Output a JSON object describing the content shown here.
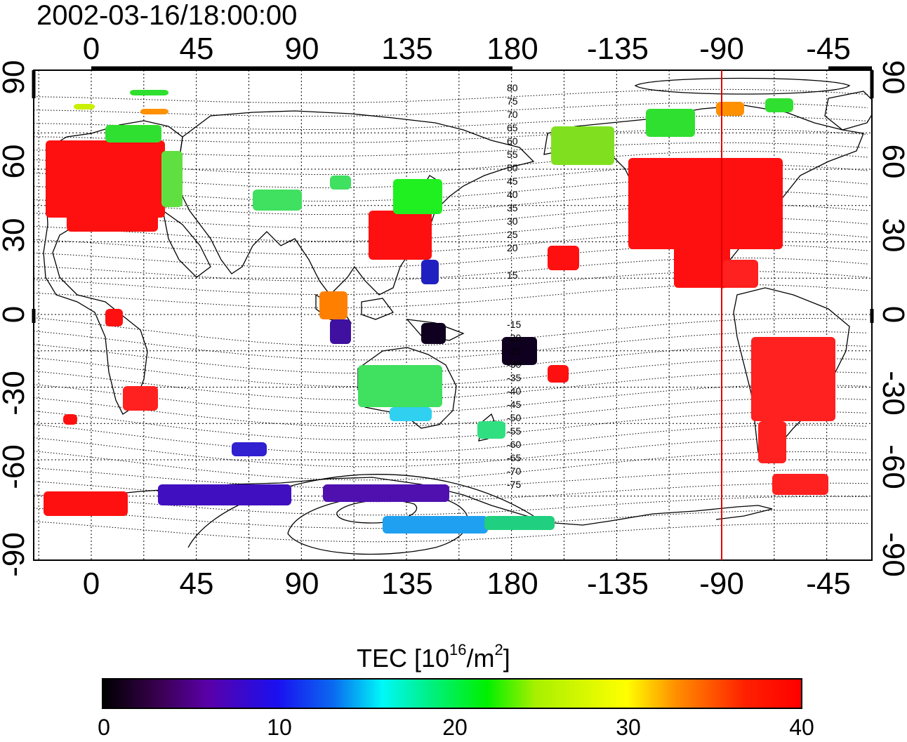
{
  "title": "2002-03-16/18:00:00",
  "map": {
    "top_lon_labels": [
      "0",
      "45",
      "90",
      "135",
      "180",
      "-135",
      "-90",
      "-45"
    ],
    "bottom_lon_labels": [
      "0",
      "45",
      "90",
      "135",
      "180",
      "-135",
      "-90",
      "-45"
    ],
    "left_lat_labels": [
      "90",
      "60",
      "30",
      "0",
      "-30",
      "-60",
      "-90"
    ],
    "right_lat_labels": [
      "90",
      "60",
      "30",
      "0",
      "-30",
      "-60",
      "-90"
    ],
    "north_contour_labels": [
      "80",
      "75",
      "70",
      "65",
      "60",
      "55",
      "50",
      "45",
      "40",
      "35",
      "30",
      "25",
      "20",
      "15"
    ],
    "south_contour_labels": [
      "-15",
      "-20",
      "-25",
      "-30",
      "-35",
      "-40",
      "-45",
      "-50",
      "-55",
      "-60",
      "-65",
      "-70",
      "-75"
    ],
    "terminator_longitude": -90,
    "terminator_color": "#e00000"
  },
  "colorbar": {
    "title_main": "TEC  [10",
    "title_sup1": "16",
    "title_mid": "/m",
    "title_sup2": "2",
    "title_end": "]",
    "labels": [
      "0",
      "10",
      "20",
      "30",
      "40"
    ],
    "min": 0,
    "max": 40
  }
}
